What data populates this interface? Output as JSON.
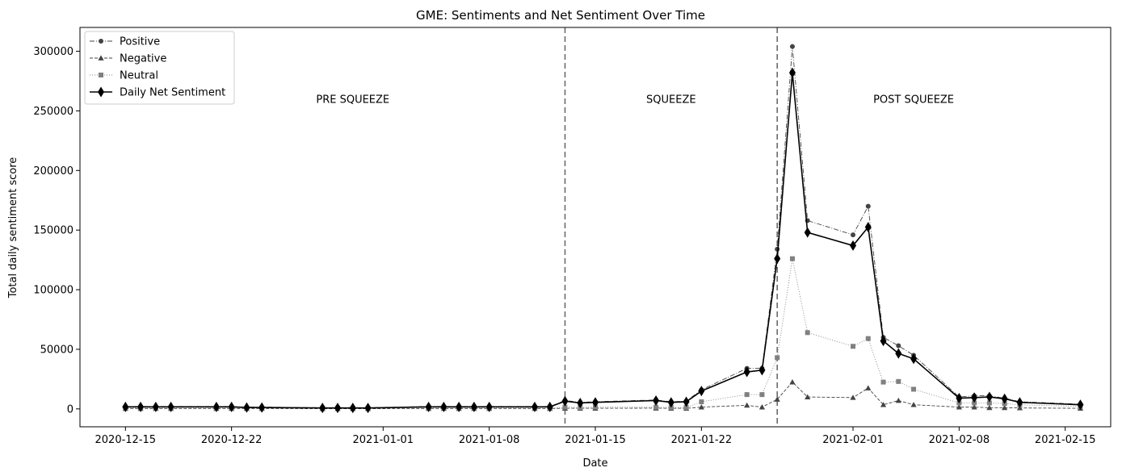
{
  "chart_data": {
    "type": "line",
    "title": "GME: Sentiments and Net Sentiment Over Time",
    "xlabel": "Date",
    "ylabel": "Total daily sentiment score",
    "xlim": [
      "2020-12-12",
      "2021-02-18"
    ],
    "ylim": [
      -15000,
      320000
    ],
    "x_ticks": [
      "2020-12-15",
      "2020-12-22",
      "2021-01-01",
      "2021-01-08",
      "2021-01-15",
      "2021-01-22",
      "2021-02-01",
      "2021-02-08",
      "2021-02-15"
    ],
    "y_ticks": [
      0,
      50000,
      100000,
      150000,
      200000,
      250000,
      300000
    ],
    "y_tick_labels": [
      "0",
      "50000",
      "100000",
      "150000",
      "200000",
      "250000",
      "300000"
    ],
    "legend_position": "upper-left",
    "grid": false,
    "vlines": [
      "2021-01-13",
      "2021-01-27"
    ],
    "annotations": [
      {
        "text": "PRE SQUEEZE",
        "x": "2020-12-30",
        "y": 260000
      },
      {
        "text": "SQUEEZE",
        "x": "2021-01-20",
        "y": 260000
      },
      {
        "text": "POST SQUEEZE",
        "x": "2021-02-05",
        "y": 260000
      }
    ],
    "x": [
      "2020-12-15",
      "2020-12-16",
      "2020-12-17",
      "2020-12-18",
      "2020-12-21",
      "2020-12-22",
      "2020-12-23",
      "2020-12-24",
      "2020-12-28",
      "2020-12-29",
      "2020-12-30",
      "2020-12-31",
      "2021-01-04",
      "2021-01-05",
      "2021-01-06",
      "2021-01-07",
      "2021-01-08",
      "2021-01-11",
      "2021-01-12",
      "2021-01-13",
      "2021-01-14",
      "2021-01-15",
      "2021-01-19",
      "2021-01-20",
      "2021-01-21",
      "2021-01-22",
      "2021-01-25",
      "2021-01-26",
      "2021-01-27",
      "2021-01-28",
      "2021-01-29",
      "2021-02-01",
      "2021-02-02",
      "2021-02-03",
      "2021-02-04",
      "2021-02-05",
      "2021-02-08",
      "2021-02-09",
      "2021-02-10",
      "2021-02-11",
      "2021-02-12",
      "2021-02-16"
    ],
    "series": [
      {
        "name": "Positive",
        "color": "#444444",
        "marker": "circle",
        "dash": "dashdot",
        "values": [
          2000,
          2000,
          2000,
          2000,
          2000,
          2000,
          1500,
          1500,
          1000,
          1000,
          1000,
          1000,
          2000,
          2000,
          2000,
          2000,
          2000,
          2000,
          2000,
          7000,
          5500,
          6000,
          7500,
          6000,
          6500,
          16000,
          34000,
          34000,
          134000,
          304000,
          158000,
          146000,
          170000,
          60000,
          53000,
          45000,
          10000,
          11000,
          11000,
          9000,
          6000,
          4000
        ]
      },
      {
        "name": "Negative",
        "color": "#444444",
        "marker": "triangle",
        "dash": "dashed",
        "values": [
          300,
          300,
          300,
          300,
          300,
          300,
          300,
          300,
          200,
          200,
          200,
          200,
          300,
          300,
          300,
          300,
          300,
          300,
          300,
          500,
          500,
          500,
          600,
          500,
          500,
          1500,
          3000,
          1500,
          8000,
          22500,
          10000,
          9500,
          17500,
          3500,
          7000,
          3500,
          1500,
          1500,
          1000,
          1000,
          800,
          500
        ]
      },
      {
        "name": "Neutral",
        "color": "#808080",
        "marker": "square",
        "dash": "dotted",
        "values": [
          800,
          800,
          800,
          800,
          800,
          800,
          600,
          600,
          500,
          500,
          500,
          500,
          800,
          800,
          800,
          800,
          800,
          800,
          800,
          1500,
          1200,
          1500,
          1500,
          1200,
          1200,
          6000,
          12000,
          12000,
          43000,
          126000,
          64000,
          52500,
          59000,
          22500,
          23000,
          16500,
          5000,
          5000,
          5000,
          4500,
          3500,
          2000
        ]
      },
      {
        "name": "Daily Net Sentiment",
        "color": "#000000",
        "marker": "diamond",
        "dash": "solid",
        "values": [
          1700,
          1700,
          1700,
          1700,
          1700,
          1700,
          1200,
          1200,
          800,
          800,
          800,
          800,
          1700,
          1700,
          1700,
          1700,
          1700,
          1700,
          1700,
          6500,
          5000,
          5500,
          7000,
          5500,
          6000,
          15000,
          31000,
          32500,
          126000,
          282000,
          148000,
          137000,
          152500,
          57000,
          46500,
          42000,
          9000,
          9500,
          10000,
          8500,
          5500,
          3500
        ]
      }
    ]
  }
}
